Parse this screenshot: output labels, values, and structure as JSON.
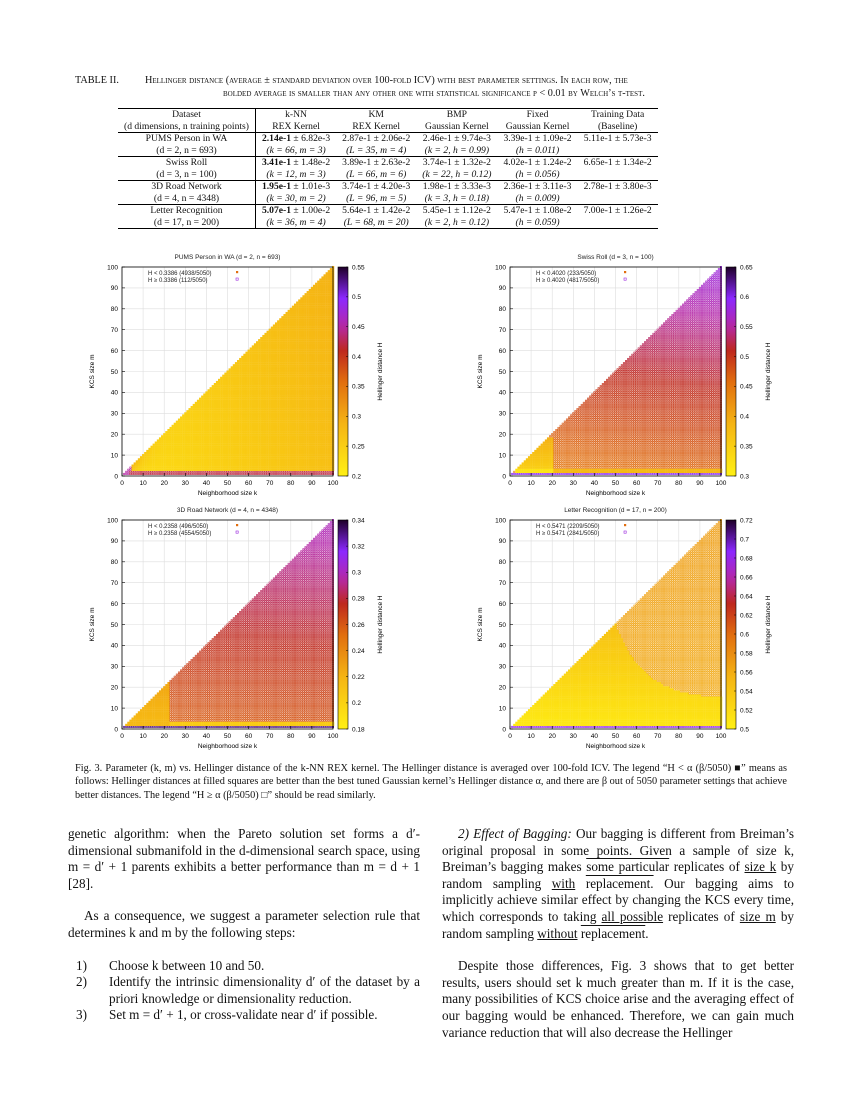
{
  "table": {
    "label": "TABLE II.",
    "caption_line1": "Hellinger distance (average ± standard deviation over 100-fold ICV) with best parameter settings. In each row, the",
    "caption_line2": "bolded average is smaller than any other one with statistical significance p < 0.01 by Welch’s t-test.",
    "headers": [
      [
        "Dataset",
        "(d dimensions, n training points)"
      ],
      [
        "k-NN",
        "REX Kernel"
      ],
      [
        "KM",
        "REX Kernel"
      ],
      [
        "BMP",
        "Gaussian Kernel"
      ],
      [
        "Fixed",
        "Gaussian Kernel"
      ],
      [
        "Training Data",
        "(Baseline)"
      ]
    ],
    "rows": [
      {
        "dataset": "PUMS Person in WA",
        "params": "(d = 2, n = 693)",
        "cells": [
          [
            "2.14e-1",
            " ± 6.82e-3",
            "(k = 66, m = 3)"
          ],
          [
            "2.87e-1 ± 2.06e-2",
            "",
            "(L = 35, m = 4)"
          ],
          [
            "2.46e-1 ± 9.74e-3",
            "",
            "(k = 2, h = 0.99)"
          ],
          [
            "3.39e-1 ± 1.09e-2",
            "",
            "(h = 0.011)"
          ],
          [
            "5.11e-1 ± 5.73e-3",
            "",
            ""
          ]
        ]
      },
      {
        "dataset": "Swiss Roll",
        "params": "(d = 3, n = 100)",
        "cells": [
          [
            "3.41e-1",
            " ± 1.48e-2",
            "(k = 12, m = 3)"
          ],
          [
            "3.89e-1 ± 2.63e-2",
            "",
            "(L = 66, m = 6)"
          ],
          [
            "3.74e-1 ± 1.32e-2",
            "",
            "(k = 22, h = 0.12)"
          ],
          [
            "4.02e-1 ± 1.24e-2",
            "",
            "(h = 0.056)"
          ],
          [
            "6.65e-1 ± 1.34e-2",
            "",
            ""
          ]
        ]
      },
      {
        "dataset": "3D Road Network",
        "params": "(d = 4, n = 4348)",
        "cells": [
          [
            "1.95e-1",
            " ± 1.01e-3",
            "(k = 30, m = 2)"
          ],
          [
            "3.74e-1 ± 4.20e-3",
            "",
            "(L = 96, m = 5)"
          ],
          [
            "1.98e-1 ± 3.33e-3",
            "",
            "(k = 3, h = 0.18)"
          ],
          [
            "2.36e-1 ± 3.11e-3",
            "",
            "(h = 0.009)"
          ],
          [
            "2.78e-1 ± 3.80e-3",
            "",
            ""
          ]
        ]
      },
      {
        "dataset": "Letter Recognition",
        "params": "(d = 17, n = 200)",
        "cells": [
          [
            "5.07e-1",
            " ± 1.00e-2",
            "(k = 36, m = 4)"
          ],
          [
            "5.64e-1 ± 1.42e-2",
            "",
            "(L = 68, m = 20)"
          ],
          [
            "5.45e-1 ± 1.12e-2",
            "",
            "(k = 2, h = 0.12)"
          ],
          [
            "5.47e-1 ± 1.08e-2",
            "",
            "(h = 0.059)"
          ],
          [
            "7.00e-1 ± 1.26e-2",
            "",
            ""
          ]
        ]
      }
    ]
  },
  "chart_data": [
    {
      "type": "heatmap",
      "title": "PUMS Person in WA (d = 2, n = 693)",
      "xlabel": "Neighborhood size k",
      "ylabel": "KCS size m",
      "colorbar_label": "Hellinger distance H",
      "xlim": [
        0,
        100
      ],
      "ylim": [
        0,
        100
      ],
      "xticks": [
        0,
        10,
        20,
        30,
        40,
        50,
        60,
        70,
        80,
        90,
        100
      ],
      "yticks": [
        0,
        10,
        20,
        30,
        40,
        50,
        60,
        70,
        80,
        90,
        100
      ],
      "crange": [
        0.2,
        0.55
      ],
      "cticks": [
        "0.2",
        "0.25",
        "0.3",
        "0.35",
        "0.4",
        "0.45",
        "0.5",
        "0.55"
      ],
      "alpha": 0.3386,
      "legend": [
        "H < 0.3386 (4938/5050)",
        "H ≥ 0.3386   (112/5050)"
      ],
      "grid": true,
      "pattern": "pums"
    },
    {
      "type": "heatmap",
      "title": "Swiss Roll (d = 3, n = 100)",
      "xlabel": "Neighborhood size k",
      "ylabel": "KCS size m",
      "colorbar_label": "Hellinger distance H",
      "xlim": [
        0,
        100
      ],
      "ylim": [
        0,
        100
      ],
      "xticks": [
        0,
        10,
        20,
        30,
        40,
        50,
        60,
        70,
        80,
        90,
        100
      ],
      "yticks": [
        0,
        10,
        20,
        30,
        40,
        50,
        60,
        70,
        80,
        90,
        100
      ],
      "crange": [
        0.3,
        0.65
      ],
      "cticks": [
        "0.3",
        "0.35",
        "0.4",
        "0.45",
        "0.5",
        "0.55",
        "0.6",
        "0.65"
      ],
      "alpha": 0.402,
      "legend": [
        "H < 0.4020   (233/5050)",
        "H ≥ 0.4020 (4817/5050)"
      ],
      "grid": true,
      "pattern": "swiss"
    },
    {
      "type": "heatmap",
      "title": "3D Road Network (d = 4, n = 4348)",
      "xlabel": "Neighborhood size k",
      "ylabel": "KCS size m",
      "colorbar_label": "Hellinger distance H",
      "xlim": [
        0,
        100
      ],
      "ylim": [
        0,
        100
      ],
      "xticks": [
        0,
        10,
        20,
        30,
        40,
        50,
        60,
        70,
        80,
        90,
        100
      ],
      "yticks": [
        0,
        10,
        20,
        30,
        40,
        50,
        60,
        70,
        80,
        90,
        100
      ],
      "crange": [
        0.18,
        0.34
      ],
      "cticks": [
        "0.18",
        "0.2",
        "0.22",
        "0.24",
        "0.26",
        "0.28",
        "0.3",
        "0.32",
        "0.34"
      ],
      "alpha": 0.2358,
      "legend": [
        "H < 0.2358   (496/5050)",
        "H ≥ 0.2358 (4554/5050)"
      ],
      "grid": true,
      "pattern": "road"
    },
    {
      "type": "heatmap",
      "title": "Letter Recognition (d = 17, n = 200)",
      "xlabel": "Neighborhood size k",
      "ylabel": "KCS size m",
      "colorbar_label": "Hellinger distance H",
      "xlim": [
        0,
        100
      ],
      "ylim": [
        0,
        100
      ],
      "xticks": [
        0,
        10,
        20,
        30,
        40,
        50,
        60,
        70,
        80,
        90,
        100
      ],
      "yticks": [
        0,
        10,
        20,
        30,
        40,
        50,
        60,
        70,
        80,
        90,
        100
      ],
      "crange": [
        0.5,
        0.72
      ],
      "cticks": [
        "0.5",
        "0.52",
        "0.54",
        "0.56",
        "0.58",
        "0.6",
        "0.62",
        "0.64",
        "0.66",
        "0.68",
        "0.7",
        "0.72"
      ],
      "alpha": 0.5471,
      "legend": [
        "H < 0.5471 (2209/5050)",
        "H ≥ 0.5471 (2841/5050)"
      ],
      "grid": true,
      "pattern": "letter"
    }
  ],
  "figure_caption": "Fig. 3.   Parameter (k, m) vs. Hellinger distance of the k-NN REX kernel. The Hellinger distance is averaged over 100-fold ICV. The legend “H < α (β/5050) ■” means as follows: Hellinger distances at filled squares are better than the best tuned Gaussian kernel’s Hellinger distance α, and there are β out of 5050 parameter settings that achieve better distances. The legend “H ≥ α (β/5050) □” should be read similarly.",
  "left_column": {
    "p1": "genetic algorithm: when the Pareto solution set forms a d′-dimensional submanifold in the d-dimensional search space, using m = d′ + 1 parents exhibits a better performance than m = d + 1 [28].",
    "p2": "As a consequence, we suggest a parameter selection rule that determines k and m by the following steps:",
    "steps": [
      {
        "n": "1)",
        "text": "Choose k between 10 and 50."
      },
      {
        "n": "2)",
        "text": "Identify the intrinsic dimensionality d′ of the dataset by a priori knowledge or dimensionality reduction."
      },
      {
        "n": "3)",
        "text": "Set m = d′ + 1, or cross-validate near d′ if possible."
      }
    ]
  },
  "right_column": {
    "p1_segments": [
      {
        "t": "2) Effect of Bagging:",
        "s": "i"
      },
      {
        "t": " Our bagging is different from Breiman’s original proposal in some points. Given a sample of size k, Breiman’s bagging makes "
      },
      {
        "t": "some particular",
        "s": "o"
      },
      {
        "t": " replicates of "
      },
      {
        "t": "size k",
        "s": "u"
      },
      {
        "t": " by random sampling "
      },
      {
        "t": "with",
        "s": "u"
      },
      {
        "t": " "
      },
      {
        "t": "replacement.",
        "s": "o"
      },
      {
        "t": " Our bagging aims to implicitly achieve similar effect by changing the KCS every time, which corresponds to taking "
      },
      {
        "t": "all possible",
        "s": "u"
      },
      {
        "t": " replicates of "
      },
      {
        "t": "size m",
        "s": "u"
      },
      {
        "t": " by random sampling "
      },
      {
        "t": "without",
        "s": "u"
      },
      {
        "t": " "
      },
      {
        "t": "replacement",
        "s": "o"
      },
      {
        "t": "."
      }
    ],
    "p2": "Despite those differences, Fig. 3 shows that to get better results, users should set k much greater than m. If it is the case, many possibilities of KCS choice arise and the averaging effect of our bagging would be enhanced. Therefore, we can gain much variance reduction that will also decrease the Hellinger"
  }
}
